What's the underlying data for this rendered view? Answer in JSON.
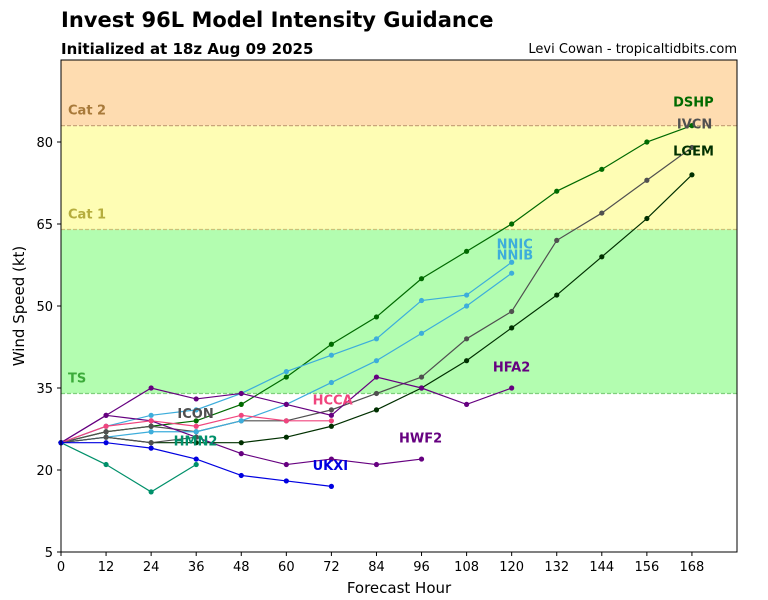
{
  "header": {
    "title": "Invest 96L Model Intensity Guidance",
    "subtitle": "Initialized at 18z Aug 09 2025",
    "credit": "Levi Cowan - tropicaltidbits.com"
  },
  "chart_data": {
    "type": "line",
    "title": "Invest 96L Model Intensity Guidance",
    "subtitle": "Initialized at 18z Aug 09 2025",
    "xlabel": "Forecast Hour",
    "ylabel": "Wind Speed (kt)",
    "xlim": [
      0,
      180
    ],
    "ylim": [
      5,
      95
    ],
    "xticks": [
      0,
      12,
      24,
      36,
      48,
      60,
      72,
      84,
      96,
      108,
      120,
      132,
      144,
      156,
      168
    ],
    "yticks": [
      5,
      20,
      35,
      50,
      65,
      80
    ],
    "grid": false,
    "legend": "inline labels at end of each series",
    "bands": [
      {
        "name": "TS",
        "from": 34,
        "to": 64,
        "color": "#b3fdb0",
        "line_color": "#7fcf7c",
        "label_color": "#3cab3a"
      },
      {
        "name": "Cat 1",
        "from": 64,
        "to": 83,
        "color": "#fefdb4",
        "line_color": "#c9c27a",
        "label_color": "#b5ad3d"
      },
      {
        "name": "Cat 2",
        "from": 83,
        "to": 95,
        "color": "#fedcb0",
        "line_color": "#c9a57a",
        "label_color": "#a87a3a"
      }
    ],
    "series": [
      {
        "name": "DSHP",
        "color": "#006a00",
        "x": [
          0,
          12,
          24,
          36,
          48,
          60,
          72,
          84,
          96,
          108,
          120,
          132,
          144,
          156,
          168
        ],
        "y": [
          25,
          27,
          28,
          29,
          32,
          37,
          43,
          48,
          55,
          60,
          65,
          71,
          75,
          80,
          83
        ]
      },
      {
        "name": "IVCN",
        "color": "#505050",
        "x": [
          0,
          12,
          24,
          36,
          48,
          60,
          72,
          84,
          96,
          108,
          120,
          132,
          144,
          156,
          168
        ],
        "y": [
          25,
          27,
          28,
          27,
          29,
          29,
          31,
          34,
          37,
          44,
          49,
          62,
          67,
          73,
          79
        ]
      },
      {
        "name": "LGEM",
        "color": "#003000",
        "x": [
          0,
          12,
          24,
          36,
          48,
          60,
          72,
          84,
          96,
          108,
          120,
          132,
          144,
          156,
          168
        ],
        "y": [
          25,
          26,
          25,
          25,
          25,
          26,
          28,
          31,
          35,
          40,
          46,
          52,
          59,
          66,
          74
        ]
      },
      {
        "name": "NNIC",
        "color": "#3daddb",
        "x": [
          0,
          12,
          24,
          36,
          48,
          60,
          72,
          84,
          96,
          108,
          120
        ],
        "y": [
          25,
          28,
          30,
          31,
          34,
          38,
          41,
          44,
          51,
          52,
          58
        ]
      },
      {
        "name": "NNIB",
        "color": "#3daddb",
        "x": [
          0,
          12,
          24,
          36,
          48,
          60,
          72,
          84,
          96,
          108,
          120
        ],
        "y": [
          25,
          26,
          27,
          27,
          29,
          32,
          36,
          40,
          45,
          50,
          56
        ]
      },
      {
        "name": "HFA2",
        "color": "#660080",
        "x": [
          0,
          12,
          24,
          36,
          48,
          60,
          72,
          84,
          96,
          108,
          120
        ],
        "y": [
          25,
          30,
          35,
          33,
          34,
          32,
          30,
          37,
          35,
          32,
          35
        ]
      },
      {
        "name": "HWF2",
        "color": "#660080",
        "x": [
          0,
          12,
          24,
          36,
          48,
          60,
          72,
          84,
          96
        ],
        "y": [
          25,
          30,
          29,
          26,
          23,
          21,
          22,
          21,
          22
        ]
      },
      {
        "name": "HCCA",
        "color": "#f0457e",
        "x": [
          0,
          12,
          24,
          36,
          48,
          60,
          72
        ],
        "y": [
          25,
          28,
          29,
          28,
          30,
          29,
          29
        ]
      },
      {
        "name": "ICON",
        "color": "#505050",
        "x": [
          0,
          12,
          24,
          36
        ],
        "y": [
          25,
          26,
          25,
          26
        ]
      },
      {
        "name": "HMN2",
        "color": "#00906a",
        "x": [
          0,
          12,
          24,
          36
        ],
        "y": [
          25,
          21,
          16,
          21
        ]
      },
      {
        "name": "UKXI",
        "color": "#0000e0",
        "x": [
          0,
          12,
          24,
          36,
          48,
          60,
          72
        ],
        "y": [
          25,
          25,
          24,
          22,
          19,
          18,
          17
        ]
      }
    ],
    "annotations": [
      {
        "text": "DSHP",
        "x": 163,
        "y": 86.5,
        "color": "#006a00"
      },
      {
        "text": "IVCN",
        "x": 164,
        "y": 82.5,
        "color": "#505050"
      },
      {
        "text": "LGEM",
        "x": 163,
        "y": 77.5,
        "color": "#003000"
      },
      {
        "text": "NNIC",
        "x": 116,
        "y": 60.5,
        "color": "#3daddb"
      },
      {
        "text": "NNIB",
        "x": 116,
        "y": 58.5,
        "color": "#3daddb"
      },
      {
        "text": "HFA2",
        "x": 115,
        "y": 38,
        "color": "#660080"
      },
      {
        "text": "HWF2",
        "x": 90,
        "y": 25,
        "color": "#660080"
      },
      {
        "text": "HCCA",
        "x": 67,
        "y": 32,
        "color": "#f0457e"
      },
      {
        "text": "ICON",
        "x": 31,
        "y": 29.5,
        "color": "#505050"
      },
      {
        "text": "HMN2",
        "x": 30,
        "y": 24.5,
        "color": "#00906a"
      },
      {
        "text": "UKXI",
        "x": 67,
        "y": 20,
        "color": "#0000e0"
      }
    ]
  }
}
